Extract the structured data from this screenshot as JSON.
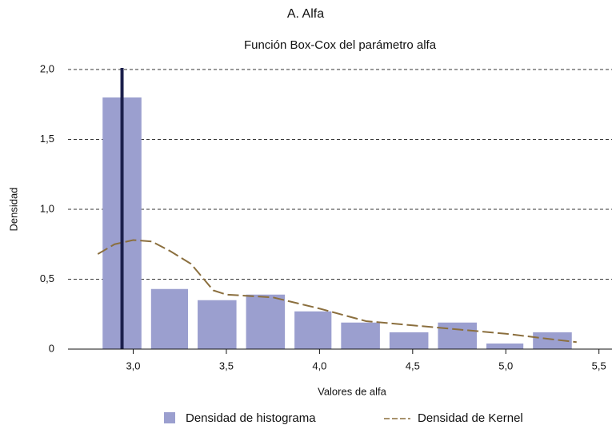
{
  "chart_data": {
    "type": "histogram",
    "title": "A. Alfa",
    "subtitle": "Función Box-Cox del parámetro alfa",
    "xlabel": "Valores de alfa",
    "ylabel": "Densidad",
    "bins": [
      2.81,
      3.07,
      3.32,
      3.58,
      3.84,
      4.09,
      4.35,
      4.61,
      4.87,
      5.12,
      5.38
    ],
    "series": [
      {
        "name": "Densidad de histograma",
        "color": "#9b9fcf",
        "values": [
          1.8,
          0.43,
          0.35,
          0.39,
          0.27,
          0.19,
          0.12,
          0.19,
          0.04,
          0.12
        ]
      },
      {
        "name": "Densidad de Kernel",
        "color": "#8b6f3e",
        "x": [
          2.81,
          2.9,
          3.0,
          3.1,
          3.2,
          3.31,
          3.43,
          3.5,
          3.75,
          4.0,
          4.25,
          4.5,
          4.75,
          5.0,
          5.25,
          5.38
        ],
        "values": [
          0.68,
          0.75,
          0.78,
          0.77,
          0.7,
          0.61,
          0.42,
          0.39,
          0.37,
          0.29,
          0.2,
          0.17,
          0.14,
          0.11,
          0.07,
          0.05
        ]
      }
    ],
    "vline": {
      "x": 2.94,
      "color": "#1b1f4b"
    },
    "xlim": [
      2.65,
      5.57
    ],
    "ylim": [
      0,
      2.0
    ],
    "xticks": [
      {
        "value": 3.0,
        "label": "3,0"
      },
      {
        "value": 3.5,
        "label": "3,5"
      },
      {
        "value": 4.0,
        "label": "4,0"
      },
      {
        "value": 4.5,
        "label": "4,5"
      },
      {
        "value": 5.0,
        "label": "5,0"
      },
      {
        "value": 5.5,
        "label": "5,5"
      }
    ],
    "yticks": [
      0,
      {
        "value": 0.5,
        "label": "0,5"
      },
      {
        "value": 1.0,
        "label": "1,0"
      },
      {
        "value": 1.5,
        "label": "1,5"
      },
      {
        "value": 2.0,
        "label": "2,0"
      }
    ],
    "grid": true
  }
}
